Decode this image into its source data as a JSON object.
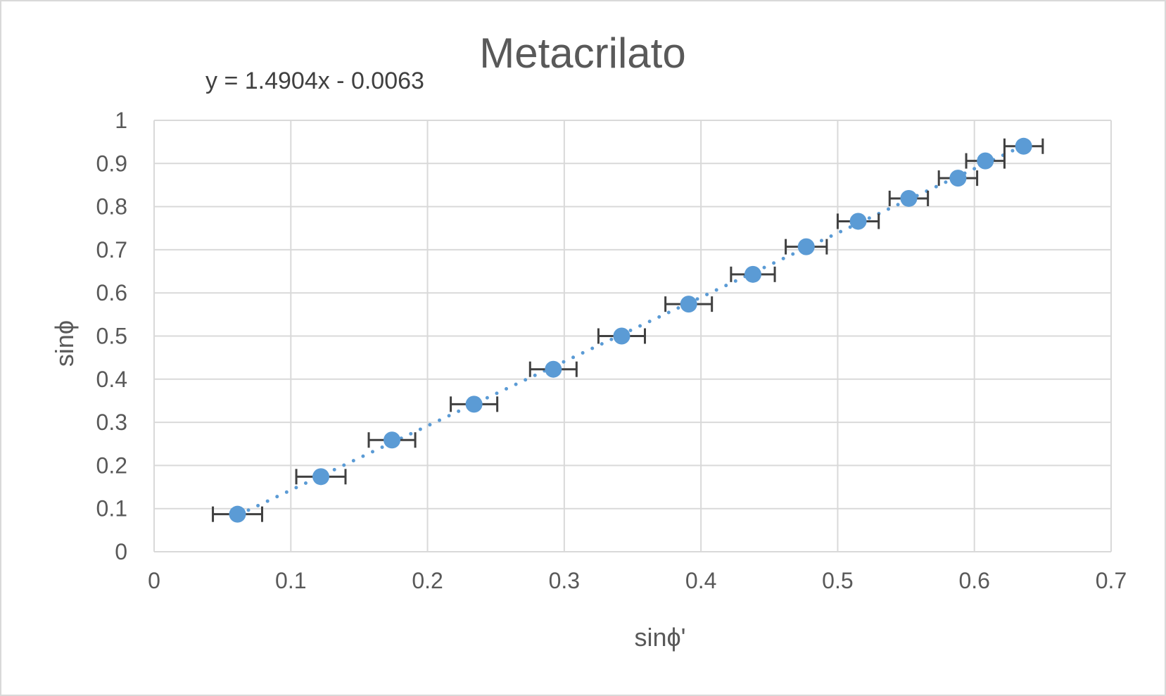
{
  "chart_data": {
    "type": "scatter",
    "title": "Metacrilato",
    "trendline_equation": "y = 1.4904x - 0.0063",
    "trendline": {
      "slope": 1.4904,
      "intercept": -0.0063,
      "style": "dotted",
      "x_range": [
        0.062,
        0.636
      ]
    },
    "xlabel": "sinϕ'",
    "ylabel": "sinϕ",
    "xlim": [
      0,
      0.7
    ],
    "ylim": [
      0,
      1
    ],
    "x_ticks": [
      "0",
      "0.1",
      "0.2",
      "0.3",
      "0.4",
      "0.5",
      "0.6",
      "0.7"
    ],
    "y_ticks": [
      "0",
      "0.1",
      "0.2",
      "0.3",
      "0.4",
      "0.5",
      "0.6",
      "0.7",
      "0.8",
      "0.9",
      "1"
    ],
    "grid": true,
    "legend": "none",
    "colors": {
      "marker": "#5b9bd5",
      "trendline": "#5b9bd5",
      "error_bar": "#404040",
      "grid": "#d9d9d9",
      "text": "#595959"
    },
    "series": [
      {
        "points": [
          {
            "x": 0.061,
            "y": 0.087,
            "x_error": 0.018
          },
          {
            "x": 0.122,
            "y": 0.174,
            "x_error": 0.018
          },
          {
            "x": 0.174,
            "y": 0.259,
            "x_error": 0.017
          },
          {
            "x": 0.234,
            "y": 0.342,
            "x_error": 0.017
          },
          {
            "x": 0.292,
            "y": 0.423,
            "x_error": 0.017
          },
          {
            "x": 0.342,
            "y": 0.5,
            "x_error": 0.017
          },
          {
            "x": 0.391,
            "y": 0.574,
            "x_error": 0.017
          },
          {
            "x": 0.438,
            "y": 0.643,
            "x_error": 0.016
          },
          {
            "x": 0.477,
            "y": 0.707,
            "x_error": 0.015
          },
          {
            "x": 0.515,
            "y": 0.766,
            "x_error": 0.015
          },
          {
            "x": 0.552,
            "y": 0.819,
            "x_error": 0.014
          },
          {
            "x": 0.588,
            "y": 0.866,
            "x_error": 0.014
          },
          {
            "x": 0.608,
            "y": 0.906,
            "x_error": 0.014
          },
          {
            "x": 0.636,
            "y": 0.94,
            "x_error": 0.014
          }
        ]
      }
    ]
  }
}
